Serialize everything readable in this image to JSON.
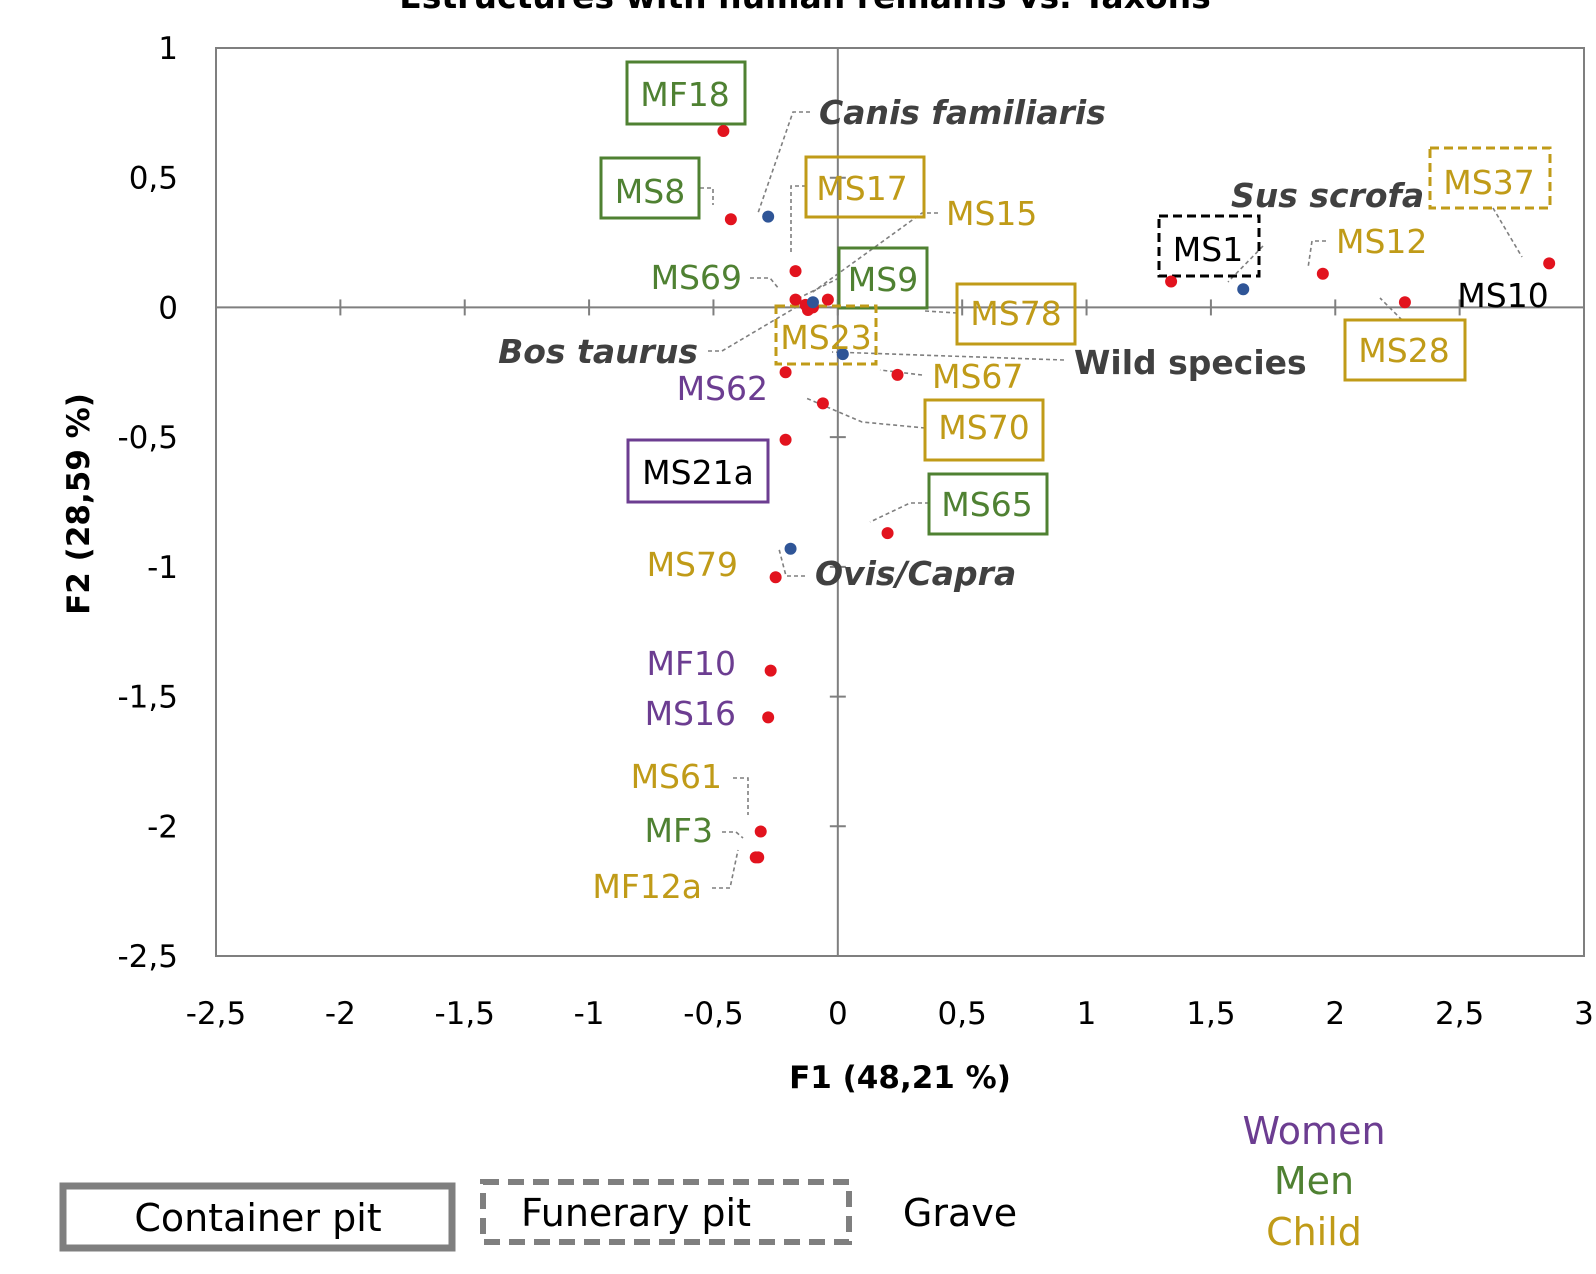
{
  "colors": {
    "women": "#6c3d91",
    "men": "#4f8132",
    "child": "#c09b18",
    "grave": "#000000",
    "structure_point": "#e2131e",
    "taxon_point": "#2f5597",
    "taxon_label": "#404040"
  },
  "chart_data": {
    "type": "scatter",
    "title": "Estructures with human remains vs. Taxons",
    "xlabel": "F1 (48,21 %)",
    "ylabel": "F2 (28,59 %)",
    "xlim": [
      -2.5,
      3
    ],
    "ylim": [
      -2.5,
      1
    ],
    "x_ticks": [
      "-2,5",
      "-2",
      "-1,5",
      "-1",
      "-0,5",
      "0",
      "0,5",
      "1",
      "1,5",
      "2",
      "2,5",
      "3"
    ],
    "y_ticks": [
      "1",
      "0,5",
      "0",
      "-0,5",
      "-1",
      "-1,5",
      "-2",
      "-2,5"
    ],
    "structures": [
      {
        "label": "MF18",
        "x": -0.46,
        "y": 0.68,
        "group": "men",
        "type": "container"
      },
      {
        "label": "MS8",
        "x": -0.43,
        "y": 0.34,
        "group": "men",
        "type": "container"
      },
      {
        "label": "MS17",
        "x": -0.17,
        "y": 0.14,
        "group": "child",
        "type": "container"
      },
      {
        "label": "MS15",
        "x": -0.04,
        "y": 0.03,
        "group": "child",
        "type": "grave"
      },
      {
        "label": "MS69",
        "x": -0.17,
        "y": 0.03,
        "group": "men",
        "type": "grave"
      },
      {
        "label": "MS9",
        "x": -0.13,
        "y": 0.01,
        "group": "men",
        "type": "container"
      },
      {
        "label": "MS78",
        "x": -0.1,
        "y": 0.0,
        "group": "child",
        "type": "container"
      },
      {
        "label": "MS23",
        "x": -0.12,
        "y": -0.01,
        "group": "child",
        "type": "funerary"
      },
      {
        "label": "MS67",
        "x": 0.24,
        "y": -0.26,
        "group": "child",
        "type": "grave"
      },
      {
        "label": "MS62",
        "x": -0.21,
        "y": -0.25,
        "group": "women",
        "type": "grave"
      },
      {
        "label": "MS70",
        "x": -0.06,
        "y": -0.37,
        "group": "child",
        "type": "container"
      },
      {
        "label": "MS21a",
        "x": -0.21,
        "y": -0.51,
        "group": "grave",
        "type": "container_women"
      },
      {
        "label": "MS65",
        "x": 0.2,
        "y": -0.87,
        "group": "men",
        "type": "container"
      },
      {
        "label": "MS79",
        "x": -0.25,
        "y": -1.04,
        "group": "child",
        "type": "grave"
      },
      {
        "label": "MF10",
        "x": -0.27,
        "y": -1.4,
        "group": "women",
        "type": "grave"
      },
      {
        "label": "MS16",
        "x": -0.28,
        "y": -1.58,
        "group": "women",
        "type": "grave"
      },
      {
        "label": "MS61",
        "x": -0.31,
        "y": -2.02,
        "group": "child",
        "type": "grave"
      },
      {
        "label": "MF3",
        "x": -0.32,
        "y": -2.12,
        "group": "men",
        "type": "grave"
      },
      {
        "label": "MF12a",
        "x": -0.33,
        "y": -2.12,
        "group": "child",
        "type": "grave"
      },
      {
        "label": "MS1",
        "x": 1.34,
        "y": 0.1,
        "group": "grave",
        "type": "funerary"
      },
      {
        "label": "MS12",
        "x": 1.95,
        "y": 0.13,
        "group": "child",
        "type": "grave"
      },
      {
        "label": "MS28",
        "x": 2.28,
        "y": 0.02,
        "group": "child",
        "type": "container"
      },
      {
        "label": "MS37",
        "x": 2.86,
        "y": 0.17,
        "group": "child",
        "type": "funerary"
      },
      {
        "label": "MS10",
        "x": 2.86,
        "y": 0.17,
        "group": "grave",
        "type": "grave"
      }
    ],
    "taxa": [
      {
        "label": "Canis familiaris",
        "x": -0.28,
        "y": 0.35
      },
      {
        "label": "Bos taurus",
        "x": -0.1,
        "y": 0.02
      },
      {
        "label": "Wild species",
        "x": 0.02,
        "y": -0.18
      },
      {
        "label": "Ovis/Capra",
        "x": -0.19,
        "y": -0.93
      },
      {
        "label": "Sus scrofa",
        "x": 1.63,
        "y": 0.07
      }
    ],
    "legend": {
      "shapes": [
        "Container pit",
        "Funerary pit",
        "Grave"
      ],
      "groups": [
        "Women",
        "Men",
        "Child"
      ]
    }
  }
}
